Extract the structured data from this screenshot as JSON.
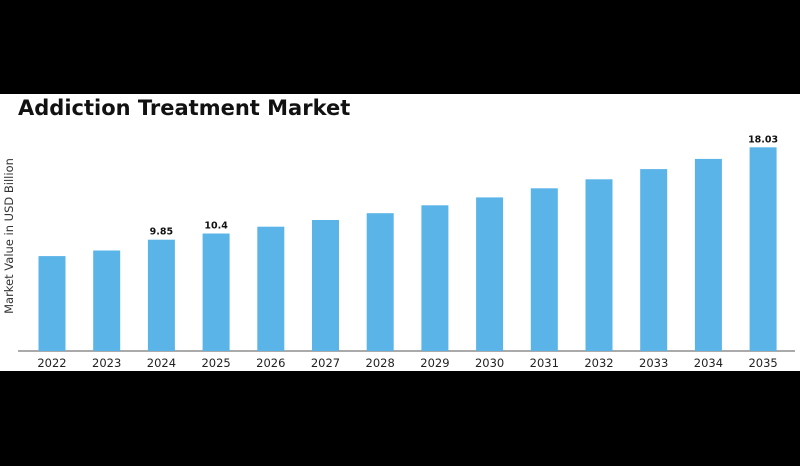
{
  "chart_data": {
    "type": "bar",
    "title": "Addiction Treatment Market",
    "xlabel": "",
    "ylabel": "Market Value in USD Billion",
    "categories": [
      "2022",
      "2023",
      "2024",
      "2025",
      "2026",
      "2027",
      "2028",
      "2029",
      "2030",
      "2031",
      "2032",
      "2033",
      "2034",
      "2035"
    ],
    "values": [
      8.4,
      8.9,
      9.85,
      10.4,
      11.0,
      11.6,
      12.2,
      12.9,
      13.6,
      14.4,
      15.2,
      16.1,
      17.0,
      18.03
    ],
    "data_labels": {
      "2024": "9.85",
      "2025": "10.4",
      "2035": "18.03"
    },
    "ylim": [
      0,
      18.5
    ],
    "grid": false,
    "legend": "none",
    "bar_color": "#5ab4e8",
    "axis_color": "#555555"
  }
}
